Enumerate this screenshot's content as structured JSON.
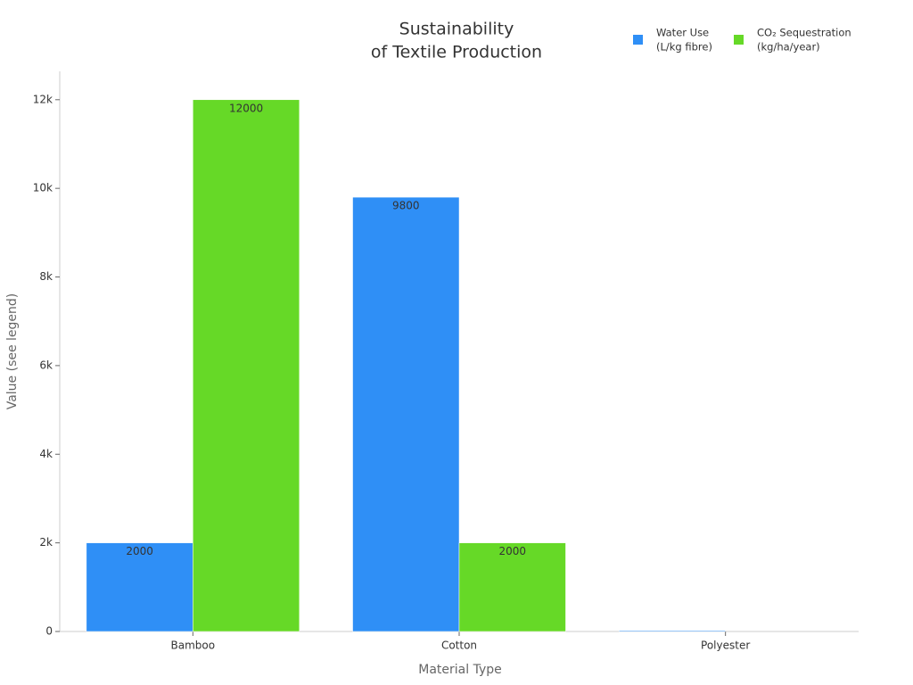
{
  "chart_data": {
    "type": "bar",
    "title": [
      "Sustainability",
      "of Textile Production"
    ],
    "x_label": "Material Type",
    "y_label": "Value (see legend)",
    "categories": [
      "Bamboo",
      "Cotton",
      "Polyester"
    ],
    "series": [
      {
        "name": [
          "Water Use",
          "(L/kg fibre)"
        ],
        "color": "#2f8ff6",
        "values": [
          2000,
          9800,
          20
        ],
        "value_labels": [
          "2000",
          "9800",
          null
        ]
      },
      {
        "name": [
          "CO₂ Sequestration",
          "(kg/ha/year)"
        ],
        "color": "#66d927",
        "values": [
          12000,
          2000,
          0
        ],
        "value_labels": [
          "12000",
          "2000",
          null
        ]
      }
    ],
    "ylim": [
      0,
      12640
    ],
    "yticks": [
      0,
      {
        "value": 2000,
        "label": "2k"
      },
      {
        "value": 4000,
        "label": "4k"
      },
      {
        "value": 6000,
        "label": "6k"
      },
      {
        "value": 8000,
        "label": "8k"
      },
      {
        "value": 10000,
        "label": "10k"
      },
      {
        "value": 12000,
        "label": "12k"
      }
    ],
    "grid": false,
    "legend": "top-right"
  }
}
